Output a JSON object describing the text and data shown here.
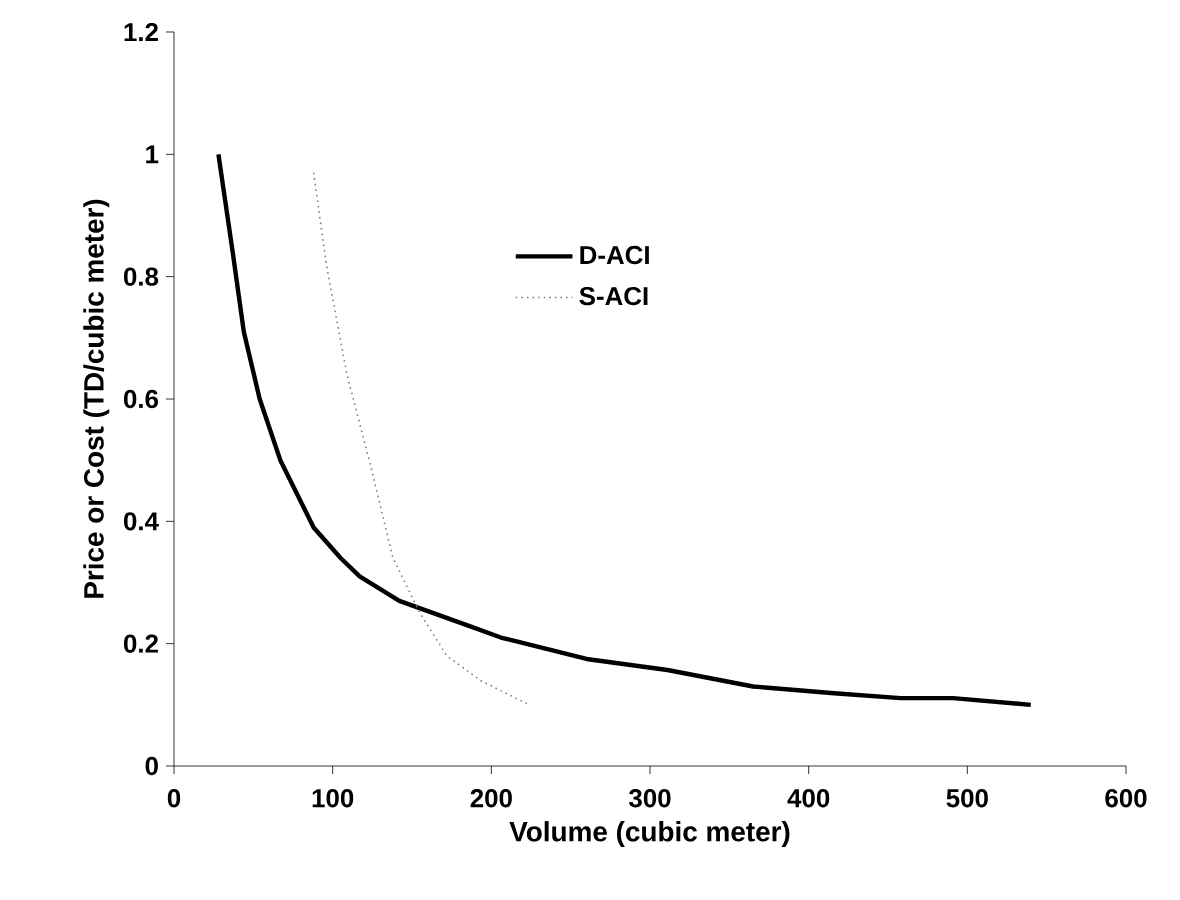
{
  "chart_data": {
    "type": "line",
    "xlabel": "Volume (cubic meter)",
    "ylabel": "Price or Cost (TD/cubic meter)",
    "xlim": [
      0,
      600
    ],
    "xticks": [
      0,
      100,
      200,
      300,
      400,
      500,
      600
    ],
    "ylim": [
      0,
      1.2
    ],
    "yticks": [
      0,
      0.2,
      0.4,
      0.6,
      0.8,
      1,
      1.2
    ],
    "legend": "center",
    "grid": false,
    "series": [
      {
        "name": "D-ACI",
        "color": "#000000",
        "line_style": "solid",
        "x": [
          28,
          37,
          44,
          54,
          67,
          88,
          105,
          117,
          142,
          185,
          206,
          260,
          311,
          365,
          416,
          458,
          491,
          540
        ],
        "values": [
          1.0,
          0.84,
          0.71,
          0.6,
          0.5,
          0.39,
          0.34,
          0.31,
          0.27,
          0.23,
          0.21,
          0.175,
          0.157,
          0.13,
          0.119,
          0.111,
          0.111,
          0.1
        ]
      },
      {
        "name": "S-ACI",
        "color": "#808080",
        "line_style": "dotted",
        "x": [
          88,
          96,
          109,
          124,
          138,
          155,
          172,
          193,
          224
        ],
        "values": [
          0.97,
          0.82,
          0.64,
          0.49,
          0.34,
          0.25,
          0.18,
          0.14,
          0.1
        ]
      }
    ]
  }
}
